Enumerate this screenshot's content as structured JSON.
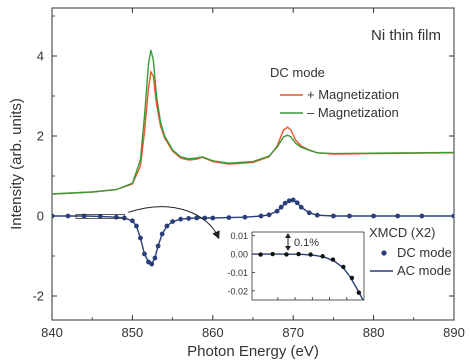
{
  "chart_data": [
    {
      "type": "line",
      "title": "Ni thin film",
      "xlabel": "Photon Energy (eV)",
      "ylabel": "Intensity (arb. units)",
      "xlim": [
        840,
        890
      ],
      "ylim": [
        -2.6,
        5.2
      ],
      "xticks": [
        840,
        850,
        860,
        870,
        880,
        890
      ],
      "yticks": [
        -2,
        0,
        2,
        4
      ],
      "grid": false,
      "legends": [
        {
          "title": "DC mode",
          "placement": "top-right",
          "entries": [
            "+ Magnetization",
            "– Magnetization"
          ]
        },
        {
          "title": "XMCD (X2)",
          "placement": "bottom-right",
          "entries": [
            "DC mode",
            "AC mode"
          ]
        }
      ],
      "colors": {
        "plus_magnetization": "#e8572a",
        "minus_magnetization": "#3a9a3a",
        "xmcd": "#2a3f7a"
      },
      "series": [
        {
          "name": "+ Magnetization",
          "x": [
            840,
            845,
            848,
            850,
            851,
            851.5,
            852,
            852.3,
            852.6,
            853,
            853.5,
            854,
            855,
            856,
            857,
            858,
            858.7,
            860,
            862,
            865,
            867,
            868,
            868.8,
            869.3,
            869.7,
            870.3,
            871,
            872,
            873,
            875,
            880,
            885,
            890
          ],
          "y": [
            0.55,
            0.6,
            0.66,
            0.8,
            1.25,
            2.1,
            3.2,
            3.6,
            3.5,
            2.8,
            2.25,
            1.95,
            1.62,
            1.45,
            1.4,
            1.42,
            1.47,
            1.36,
            1.3,
            1.34,
            1.48,
            1.75,
            2.15,
            2.22,
            2.15,
            1.9,
            1.75,
            1.65,
            1.58,
            1.55,
            1.56,
            1.57,
            1.58
          ]
        },
        {
          "name": "– Magnetization",
          "x": [
            840,
            845,
            848,
            850,
            851,
            851.5,
            852,
            852.3,
            852.6,
            853,
            853.5,
            854,
            855,
            856,
            857,
            858,
            858.7,
            860,
            862,
            865,
            867,
            868,
            868.8,
            869.3,
            869.7,
            870.3,
            871,
            872,
            873,
            875,
            880,
            885,
            890
          ],
          "y": [
            0.55,
            0.6,
            0.66,
            0.82,
            1.4,
            2.5,
            3.8,
            4.15,
            3.9,
            3.0,
            2.35,
            2.0,
            1.65,
            1.48,
            1.43,
            1.45,
            1.48,
            1.38,
            1.32,
            1.36,
            1.5,
            1.72,
            1.98,
            2.02,
            1.98,
            1.82,
            1.72,
            1.64,
            1.58,
            1.56,
            1.57,
            1.58,
            1.59
          ]
        },
        {
          "name": "DC mode",
          "marker": "dot",
          "x": [
            840,
            842,
            844,
            846,
            848,
            849,
            850,
            850.5,
            851,
            851.5,
            852,
            852.4,
            852.8,
            853.2,
            853.7,
            854.3,
            855,
            856,
            857,
            858,
            859,
            860,
            862,
            864,
            866,
            867,
            868,
            868.5,
            869,
            869.5,
            870,
            870.5,
            871,
            872,
            873,
            875,
            877,
            880,
            883,
            886,
            890
          ],
          "y": [
            0.0,
            0.0,
            0.0,
            -0.01,
            -0.03,
            -0.05,
            -0.12,
            -0.25,
            -0.55,
            -0.95,
            -1.15,
            -1.2,
            -1.05,
            -0.75,
            -0.45,
            -0.25,
            -0.14,
            -0.08,
            -0.06,
            -0.05,
            -0.05,
            -0.05,
            -0.04,
            -0.03,
            0.0,
            0.03,
            0.12,
            0.22,
            0.32,
            0.38,
            0.4,
            0.33,
            0.22,
            0.08,
            0.02,
            0.0,
            0.0,
            0.0,
            0.0,
            0.0,
            0.0
          ]
        },
        {
          "name": "AC mode",
          "x": [
            840,
            842,
            844,
            846,
            848,
            849,
            850,
            850.5,
            851,
            851.5,
            852,
            852.4,
            852.8,
            853.2,
            853.7,
            854.3,
            855,
            856,
            857,
            858,
            859,
            860,
            862,
            864,
            866,
            867,
            868,
            868.5,
            869,
            869.5,
            870,
            870.5,
            871,
            872,
            873,
            875,
            877,
            880,
            883,
            886,
            890
          ],
          "y": [
            0.0,
            0.0,
            0.0,
            -0.01,
            -0.03,
            -0.05,
            -0.12,
            -0.25,
            -0.55,
            -0.95,
            -1.15,
            -1.2,
            -1.05,
            -0.75,
            -0.45,
            -0.25,
            -0.14,
            -0.08,
            -0.06,
            -0.05,
            -0.05,
            -0.05,
            -0.04,
            -0.03,
            0.0,
            0.03,
            0.12,
            0.22,
            0.32,
            0.38,
            0.4,
            0.33,
            0.22,
            0.08,
            0.02,
            0.0,
            0.0,
            0.0,
            0.0,
            0.0,
            0.0
          ]
        }
      ],
      "zoom_region": {
        "x": [
          843,
          849
        ],
        "y": [
          -0.06,
          0.04
        ]
      }
    },
    {
      "type": "line",
      "title": "",
      "xlabel": "",
      "ylabel": "",
      "xlim": [
        842.5,
        849
      ],
      "ylim": [
        -0.025,
        0.012
      ],
      "yticks": [
        0.01,
        0.0,
        -0.01,
        -0.02
      ],
      "ytick_labels": [
        "0.01",
        "0.00",
        "-0.01",
        "-0.02"
      ],
      "annotation": "0.1%",
      "series": [
        {
          "name": "DC mode",
          "marker": "dot",
          "x": [
            843.0,
            843.7,
            844.5,
            845.2,
            845.9,
            846.6,
            847.2,
            847.8,
            848.3,
            848.7
          ],
          "y": [
            -0.0003,
            0.0,
            -0.0002,
            0.0,
            -0.0003,
            -0.0012,
            -0.003,
            -0.007,
            -0.013,
            -0.021
          ]
        },
        {
          "name": "AC mode",
          "x": [
            842.5,
            843.5,
            844.5,
            845.5,
            846.2,
            846.8,
            847.3,
            847.8,
            848.2,
            848.6,
            849.0
          ],
          "y": [
            0.0,
            0.0,
            0.0,
            -0.0002,
            -0.0008,
            -0.002,
            -0.004,
            -0.0075,
            -0.0125,
            -0.019,
            -0.026
          ]
        }
      ]
    }
  ]
}
